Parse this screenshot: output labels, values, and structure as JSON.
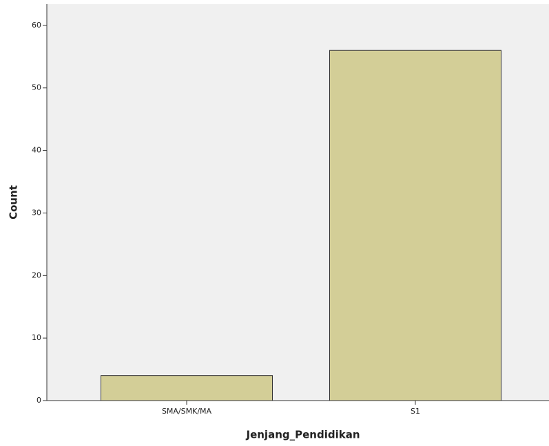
{
  "chart_data": {
    "type": "bar",
    "categories": [
      "SMA/SMK/MA",
      "S1"
    ],
    "values": [
      4,
      56
    ],
    "color": "#d3ce97",
    "x_label": "Jenjang_Pendidikan",
    "y_label": "Count",
    "ylim": [
      0,
      63.4
    ],
    "yticks": [
      0,
      10,
      20,
      30,
      40,
      50,
      60
    ]
  }
}
